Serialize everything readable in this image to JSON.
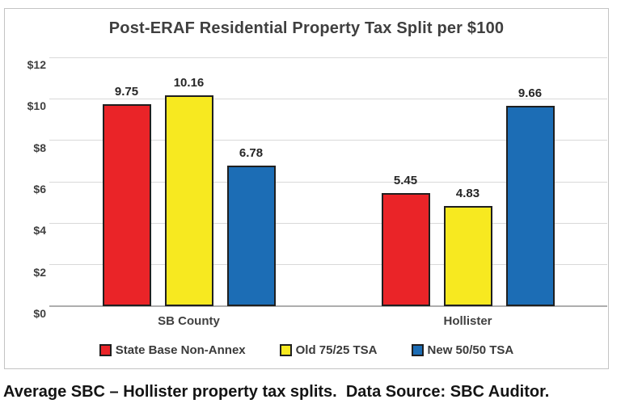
{
  "caption": "Average SBC – Hollister property tax splits.  Data Source: SBC Auditor.",
  "chart_data": {
    "type": "bar",
    "title": "Post-ERAF Residential Property Tax Split per $100",
    "categories": [
      "SB County",
      "Hollister"
    ],
    "series": [
      {
        "name": "State Base Non-Annex",
        "color": "#ea2428",
        "values": [
          9.75,
          5.45
        ]
      },
      {
        "name": "Old 75/25 TSA",
        "color": "#f7e920",
        "values": [
          10.16,
          4.83
        ]
      },
      {
        "name": "New 50/50 TSA",
        "color": "#1c6db5",
        "values": [
          6.78,
          9.66
        ]
      }
    ],
    "value_labels": [
      "9.75",
      "10.16",
      "6.78",
      "5.45",
      "4.83",
      "9.66"
    ],
    "xlabel": "",
    "ylabel": "",
    "ylim": [
      0,
      12
    ],
    "ytick_interval": 2,
    "ytick_labels": [
      "$0",
      "$2",
      "$4",
      "$6",
      "$8",
      "$10",
      "$12"
    ],
    "grid": true,
    "legend_position": "bottom"
  }
}
